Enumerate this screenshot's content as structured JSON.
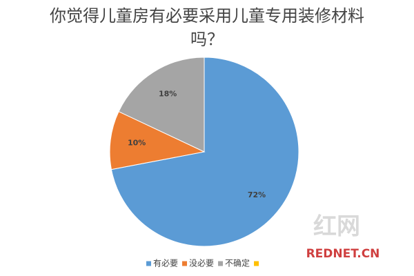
{
  "chart_data": {
    "type": "pie",
    "title": "你觉得儿童房有必要采用儿童专用装修材料吗？",
    "categories": [
      "有必要",
      "没必要",
      "不确定",
      null
    ],
    "values": [
      72,
      10,
      18,
      0
    ],
    "value_labels": [
      "72%",
      "10%",
      "18%",
      null
    ],
    "colors": [
      "#5b9bd5",
      "#ed7d31",
      "#a5a5a5",
      "#ffc000"
    ],
    "legend": "bottom"
  },
  "watermark": {
    "logo": "红网",
    "site": "REDNET.CN"
  }
}
